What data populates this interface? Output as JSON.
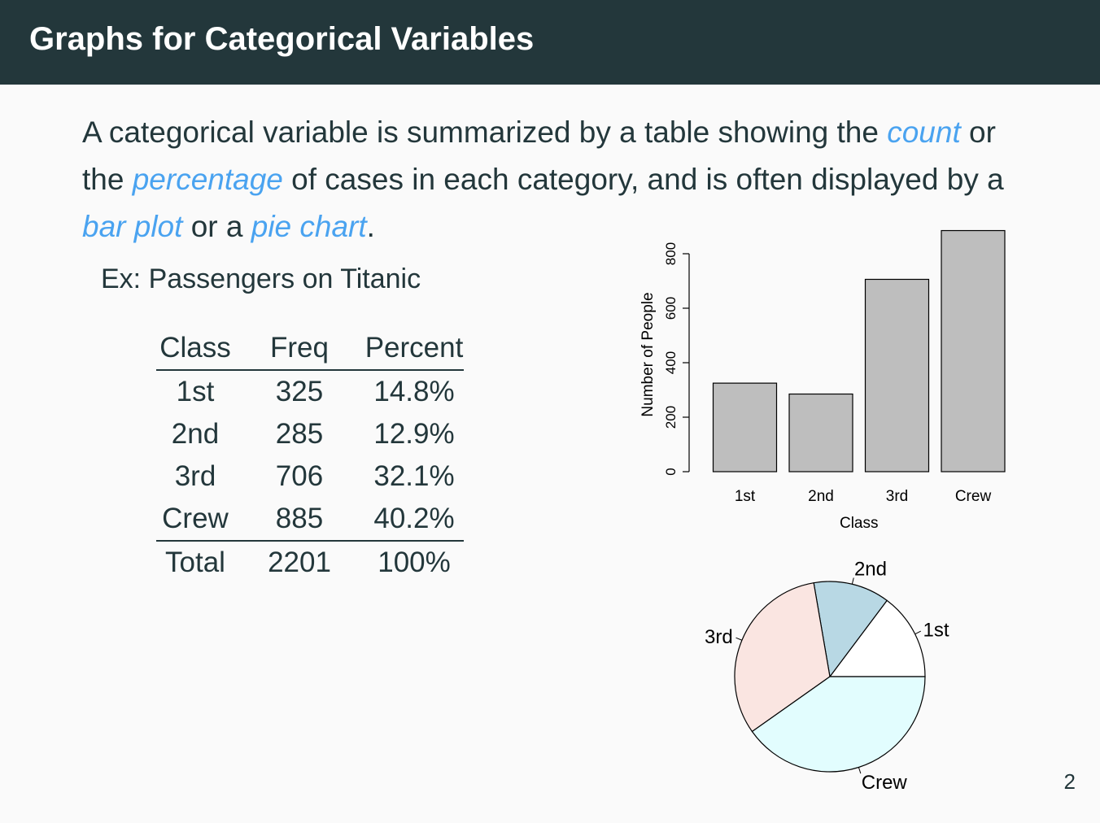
{
  "title": "Graphs for Categorical Variables",
  "intro": {
    "part1": "A categorical variable is summarized by a table showing the ",
    "count": "count",
    "part2": " or the ",
    "percentage": "percentage",
    "part3": " of cases in each category, and is often displayed by a ",
    "bar_plot": "bar plot",
    "part4": " or a ",
    "pie_chart": "pie chart",
    "part5": "."
  },
  "example": "Ex: Passengers on Titanic",
  "table": {
    "headers": [
      "Class",
      "Freq",
      "Percent"
    ],
    "rows": [
      [
        "1st",
        "325",
        "14.8%"
      ],
      [
        "2nd",
        "285",
        "12.9%"
      ],
      [
        "3rd",
        "706",
        "32.1%"
      ],
      [
        "Crew",
        "885",
        "40.2%"
      ]
    ],
    "total": [
      "Total",
      "2201",
      "100%"
    ]
  },
  "chart_data": [
    {
      "type": "bar",
      "categories": [
        "1st",
        "2nd",
        "3rd",
        "Crew"
      ],
      "values": [
        325,
        285,
        706,
        885
      ],
      "xlabel": "Class",
      "ylabel": "Number of People",
      "yticks": [
        0,
        200,
        400,
        600,
        800
      ],
      "ylim": [
        0,
        885
      ],
      "bar_color": "#bebebe",
      "grid": false
    },
    {
      "type": "pie",
      "labels": [
        "1st",
        "2nd",
        "3rd",
        "Crew"
      ],
      "values": [
        325,
        285,
        706,
        885
      ],
      "colors": [
        "#ffffff",
        "#b8d8e4",
        "#fae5e1",
        "#e2fdfe"
      ]
    }
  ],
  "page_number": "2"
}
